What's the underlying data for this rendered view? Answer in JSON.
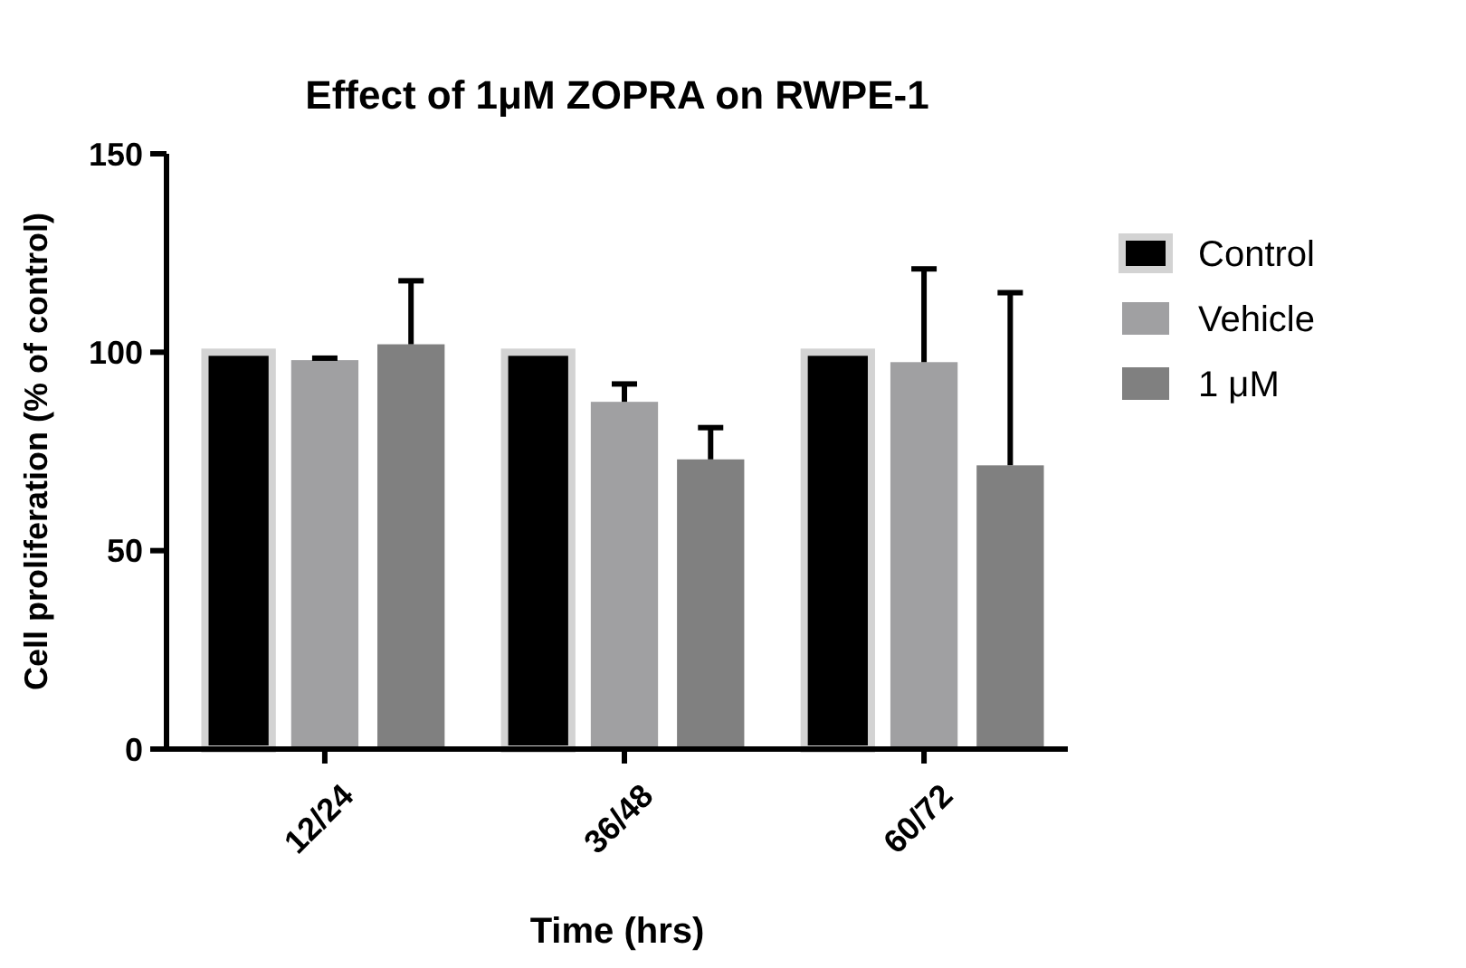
{
  "chart_data": {
    "type": "bar",
    "title": "Effect of 1μM ZOPRA on RWPE-1",
    "xlabel": "Time (hrs)",
    "ylabel": "Cell proliferation (% of control)",
    "categories": [
      "12/24",
      "36/48",
      "60/72"
    ],
    "series": [
      {
        "name": "Control",
        "color": "#000000",
        "values": [
          100,
          100,
          100
        ]
      },
      {
        "name": "Vehicle",
        "color": "#a0a0a2",
        "values": [
          98,
          87.5,
          97.5
        ],
        "errors": [
          [
            98,
            98.5
          ],
          [
            87.5,
            92
          ],
          [
            97.5,
            121
          ]
        ]
      },
      {
        "name": "1 μM",
        "color": "#808080",
        "values": [
          102,
          73,
          71.5
        ],
        "errors": [
          [
            102,
            118
          ],
          [
            73,
            81
          ],
          [
            71.5,
            115
          ]
        ]
      }
    ],
    "ylim": [
      0,
      150
    ],
    "yticks": [
      0,
      50,
      100,
      150
    ],
    "grid": false,
    "legend": "right"
  }
}
